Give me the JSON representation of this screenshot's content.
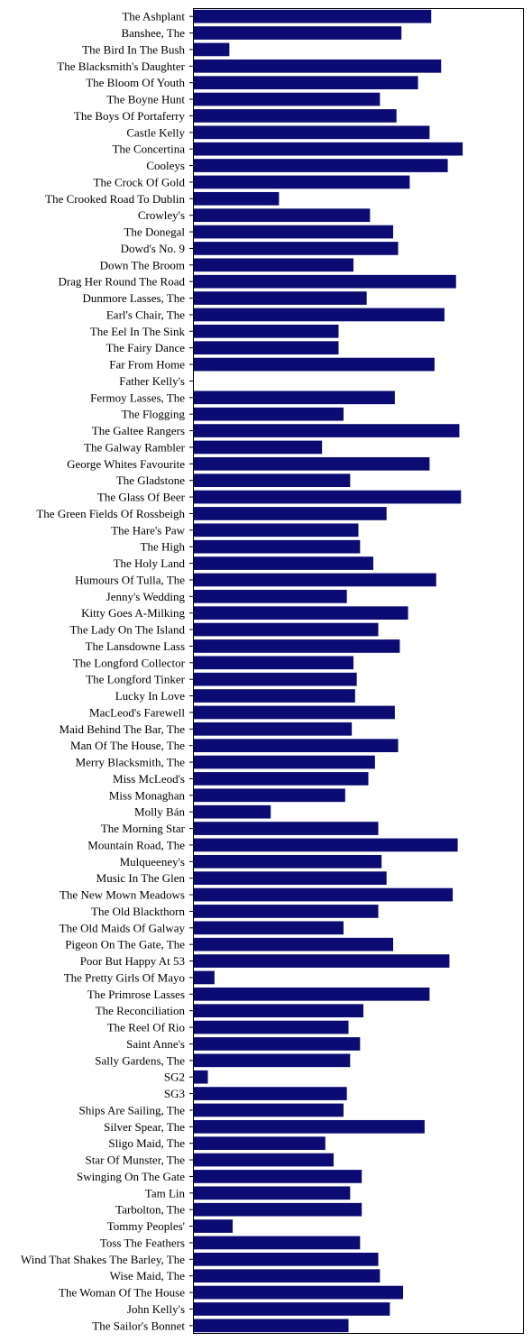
{
  "chart_data": {
    "type": "bar",
    "orientation": "horizontal",
    "title": "",
    "xlabel": "",
    "ylabel": "",
    "xlim": [
      0,
      100
    ],
    "x_ticks_visible": false,
    "grid": false,
    "legend": "none",
    "bar_color": "#0b0b73",
    "categories": [
      "The Ashplant",
      "Banshee, The",
      "The Bird In The Bush",
      "The Blacksmith's Daughter",
      "The Bloom Of Youth",
      "The Boyne Hunt",
      "The Boys Of Portaferry",
      "Castle Kelly",
      "The Concertina",
      "Cooleys",
      "The Crock Of Gold",
      "The Crooked Road To Dublin",
      "Crowley's",
      "The Donegal",
      "Dowd's No. 9",
      "Down The Broom",
      "Drag Her Round The Road",
      "Dunmore Lasses, The",
      "Earl's Chair, The",
      "The Eel In The Sink",
      "The Fairy Dance",
      "Far From Home",
      "Father Kelly's",
      "Fermoy Lasses, The",
      "The Flogging",
      "The Galtee Rangers",
      "The Galway Rambler",
      "George Whites Favourite",
      "The Gladstone",
      "The Glass Of Beer",
      "The Green Fields Of Rossbeigh",
      "The Hare's Paw",
      "The High",
      "The Holy Land",
      "Humours Of Tulla, The",
      "Jenny's Wedding",
      "Kitty Goes A-Milking",
      "The Lady On The Island",
      "The Lansdowne Lass",
      "The Longford Collector",
      "The Longford Tinker",
      "Lucky In Love",
      "MacLeod's Farewell",
      "Maid Behind The Bar, The",
      "Man Of The House, The",
      "Merry Blacksmith, The",
      "Miss McLeod's",
      "Miss Monaghan",
      "Molly Bán",
      "The Morning Star",
      "Mountain Road, The",
      "Mulqueeney's",
      "Music In The Glen",
      "The New Mown Meadows",
      "The Old Blackthorn",
      "The Old Maids Of Galway",
      "Pigeon On The Gate, The",
      "Poor But Happy At 53",
      "The Pretty Girls Of Mayo",
      "The Primrose Lasses",
      "The Reconciliation",
      "The Reel Of Rio",
      "Saint Anne's",
      "Sally Gardens, The",
      "SG2",
      "SG3",
      "Ships Are Sailing, The",
      "Silver Spear, The",
      "Sligo Maid, The",
      "Star Of Munster, The",
      "Swinging On The Gate",
      "Tam Lin",
      "Tarbolton, The",
      "Tommy Peoples'",
      "Toss The Feathers",
      "Wind That Shakes The Barley, The",
      "Wise Maid, The",
      "The Woman Of The House",
      "John Kelly's",
      "The Sailor's Bonnet"
    ],
    "values": [
      72.0,
      63.0,
      11.0,
      75.0,
      68.0,
      56.5,
      61.5,
      71.5,
      81.5,
      77.0,
      65.5,
      26.0,
      53.5,
      60.5,
      62.0,
      48.5,
      79.5,
      52.5,
      76.0,
      44.0,
      44.0,
      73.0,
      0.0,
      61.0,
      45.5,
      80.5,
      39.0,
      71.5,
      47.5,
      81.0,
      58.5,
      50.0,
      50.5,
      54.5,
      73.5,
      46.5,
      65.0,
      56.0,
      62.5,
      48.5,
      49.5,
      49.0,
      61.0,
      48.0,
      62.0,
      55.0,
      53.0,
      46.0,
      23.5,
      56.0,
      80.0,
      57.0,
      58.5,
      78.5,
      56.0,
      45.5,
      60.5,
      77.5,
      6.5,
      71.5,
      51.5,
      47.0,
      50.5,
      47.5,
      4.5,
      46.5,
      45.5,
      70.0,
      40.0,
      42.5,
      51.0,
      47.5,
      51.0,
      12.0,
      50.5,
      56.0,
      56.5,
      63.5,
      59.5,
      47.0
    ]
  }
}
